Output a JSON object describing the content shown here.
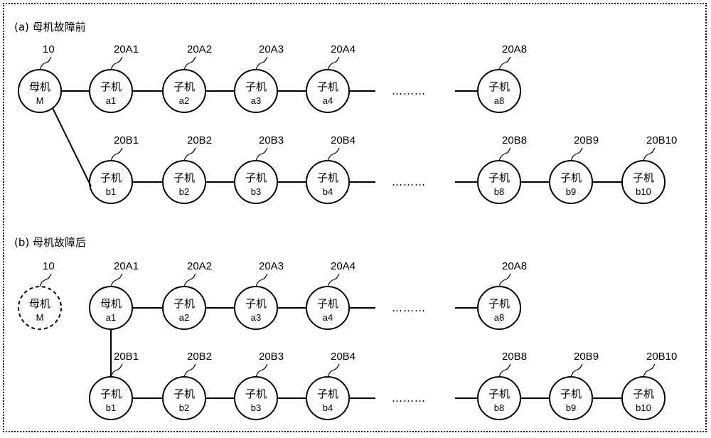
{
  "sections": [
    {
      "label": "(a) 母机故障前",
      "failed_master": false,
      "master": {
        "ref": "10",
        "line1": "母机",
        "line2": "M"
      },
      "rows": [
        {
          "nodes": [
            {
              "ref": "20A1",
              "line1": "子机",
              "line2": "a1"
            },
            {
              "ref": "20A2",
              "line1": "子机",
              "line2": "a2"
            },
            {
              "ref": "20A3",
              "line1": "子机",
              "line2": "a3"
            },
            {
              "ref": "20A4",
              "line1": "子机",
              "line2": "a4"
            },
            {
              "ref": "20A8",
              "line1": "子机",
              "line2": "a8"
            }
          ]
        },
        {
          "nodes": [
            {
              "ref": "20B1",
              "line1": "子机",
              "line2": "b1"
            },
            {
              "ref": "20B2",
              "line1": "子机",
              "line2": "b2"
            },
            {
              "ref": "20B3",
              "line1": "子机",
              "line2": "b3"
            },
            {
              "ref": "20B4",
              "line1": "子机",
              "line2": "b4"
            },
            {
              "ref": "20B8",
              "line1": "子机",
              "line2": "b8"
            },
            {
              "ref": "20B9",
              "line1": "子机",
              "line2": "b9"
            },
            {
              "ref": "20B10",
              "line1": "子机",
              "line2": "b10"
            }
          ]
        }
      ]
    },
    {
      "label": "(b) 母机故障后",
      "failed_master": true,
      "master": {
        "ref": "10",
        "line1": "母机",
        "line2": "M"
      },
      "rows": [
        {
          "nodes": [
            {
              "ref": "20A1",
              "line1": "母机",
              "line2": "a1"
            },
            {
              "ref": "20A2",
              "line1": "子机",
              "line2": "a2"
            },
            {
              "ref": "20A3",
              "line1": "子机",
              "line2": "a3"
            },
            {
              "ref": "20A4",
              "line1": "子机",
              "line2": "a4"
            },
            {
              "ref": "20A8",
              "line1": "子机",
              "line2": "a8"
            }
          ]
        },
        {
          "nodes": [
            {
              "ref": "20B1",
              "line1": "子机",
              "line2": "b1"
            },
            {
              "ref": "20B2",
              "line1": "子机",
              "line2": "b2"
            },
            {
              "ref": "20B3",
              "line1": "子机",
              "line2": "b3"
            },
            {
              "ref": "20B4",
              "line1": "子机",
              "line2": "b4"
            },
            {
              "ref": "20B8",
              "line1": "子机",
              "line2": "b8"
            },
            {
              "ref": "20B9",
              "line1": "子机",
              "line2": "b9"
            },
            {
              "ref": "20B10",
              "line1": "子机",
              "line2": "b10"
            }
          ]
        }
      ]
    }
  ],
  "ellipsis": "………"
}
